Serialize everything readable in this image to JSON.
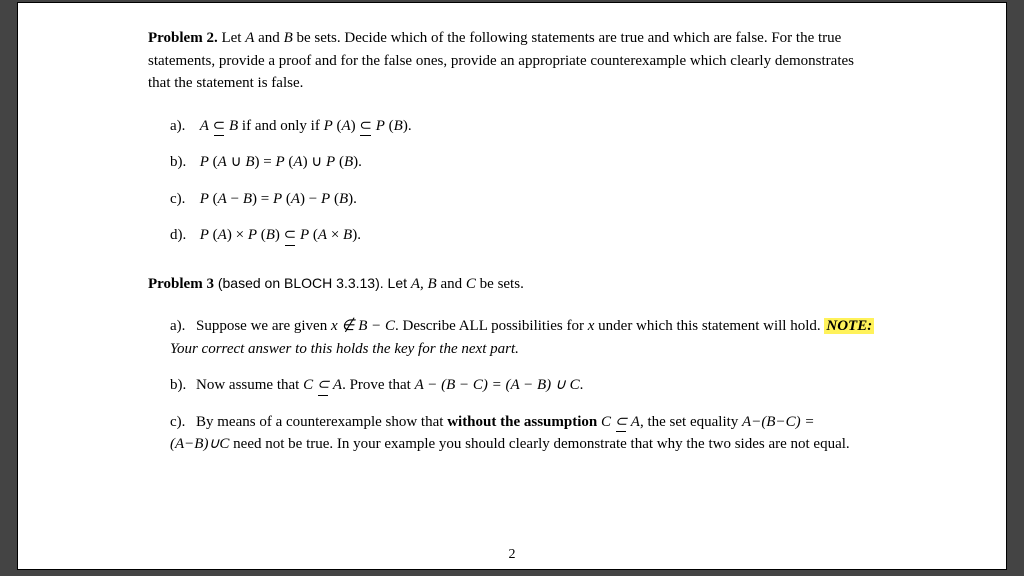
{
  "problem2": {
    "title": "Problem 2.",
    "intro": " Let ",
    "A": "A",
    "and": " and ",
    "B": "B",
    "intro2": " be sets. Decide which of the following statements are true and which are false. For the true statements, provide a proof and for the false ones, provide an appropriate counterexample which clearly demonstrates that the statement is false.",
    "a_label": "a).",
    "b_label": "b).",
    "c_label": "c).",
    "d_label": "d)."
  },
  "problem3": {
    "title": "Problem 3",
    "based": " (based on ",
    "bloch": "BLOCH 3.3.13",
    "intro": "). Let ",
    "ABC": "A, B",
    "and": " and ",
    "C": "C",
    "rest": " be sets.",
    "a_label": "a).",
    "a_text1": "Suppose we are given ",
    "a_math": "x ∉ B − C",
    "a_text2": ". Describe ALL possibilities for ",
    "a_x": "x",
    "a_text3": " under which this statement will hold. ",
    "a_note": "NOTE:",
    "a_hint": " Your correct answer to this holds the key for the next part.",
    "b_label": "b).",
    "b_text1": "Now assume that ",
    "b_math1": "C ⊆ A",
    "b_text2": ". Prove that ",
    "b_math2": "A − (B − C) = (A − B) ∪ C",
    "b_text3": ".",
    "c_label": "c).",
    "c_text1": "By means of a counterexample show that ",
    "c_bold": "without the assumption",
    "c_math1": " C ⊆ A",
    "c_text2": ", the set equality ",
    "c_math2": "A−(B−C) = (A−B)∪C",
    "c_text3": " need not be true. In your example you should clearly demonstrate that why the two sides are not equal."
  },
  "page_number": "2"
}
